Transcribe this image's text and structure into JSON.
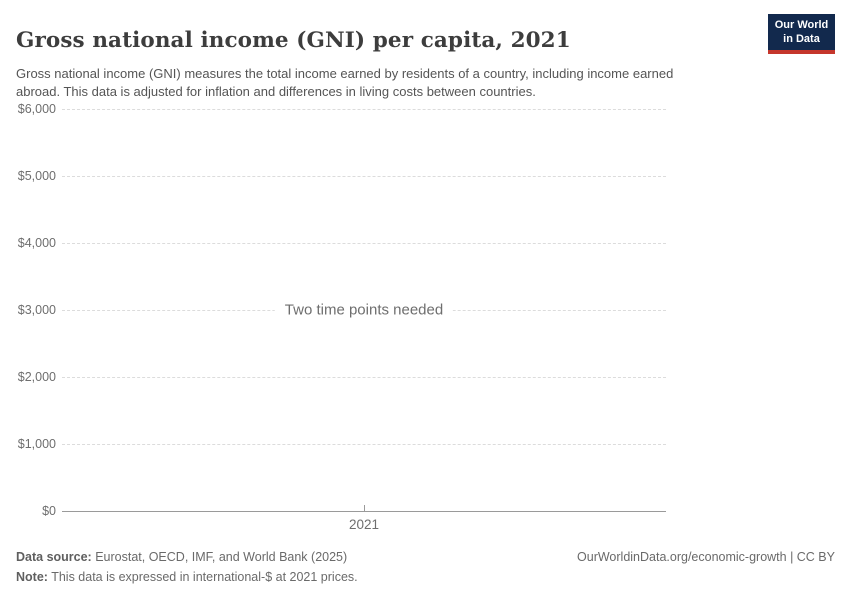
{
  "header": {
    "title": "Gross national income (GNI) per capita, 2021",
    "subtitle": "Gross national income (GNI) measures the total income earned by residents of a country, including income earned abroad. This data is adjusted for inflation and differences in living costs between countries."
  },
  "logo": {
    "line1": "Our World",
    "line2": "in Data"
  },
  "chart_data": {
    "type": "line",
    "title": "Gross national income (GNI) per capita, 2021",
    "empty_message": "Two time points needed",
    "series": [],
    "x": [
      2021
    ],
    "xlim": [
      2021,
      2021
    ],
    "ylim": [
      0,
      6000
    ],
    "x_ticks": [
      {
        "value": 2021,
        "label": "2021"
      }
    ],
    "y_ticks": [
      {
        "value": 0,
        "label": "$0"
      },
      {
        "value": 1000,
        "label": "$1,000"
      },
      {
        "value": 2000,
        "label": "$2,000"
      },
      {
        "value": 3000,
        "label": "$3,000"
      },
      {
        "value": 4000,
        "label": "$4,000"
      },
      {
        "value": 5000,
        "label": "$5,000"
      },
      {
        "value": 6000,
        "label": "$6,000"
      }
    ],
    "grid": "horizontal-dashed",
    "legend_position": "none"
  },
  "footer": {
    "data_source_label": "Data source:",
    "data_source_text": " Eurostat, OECD, IMF, and World Bank (2025)",
    "note_label": "Note:",
    "note_text": " This data is expressed in international-$ at 2021 prices.",
    "attribution": "OurWorldinData.org/economic-growth | CC BY"
  },
  "colors": {
    "background": "#ffffff",
    "title_text": "#3d3d3d",
    "subtitle_text": "#555555",
    "axis_text": "#6e6e6e",
    "gridline": "#dcdcdc",
    "axis_line": "#9a9a9a",
    "logo_navy": "#12294d",
    "logo_red": "#c5362c"
  }
}
